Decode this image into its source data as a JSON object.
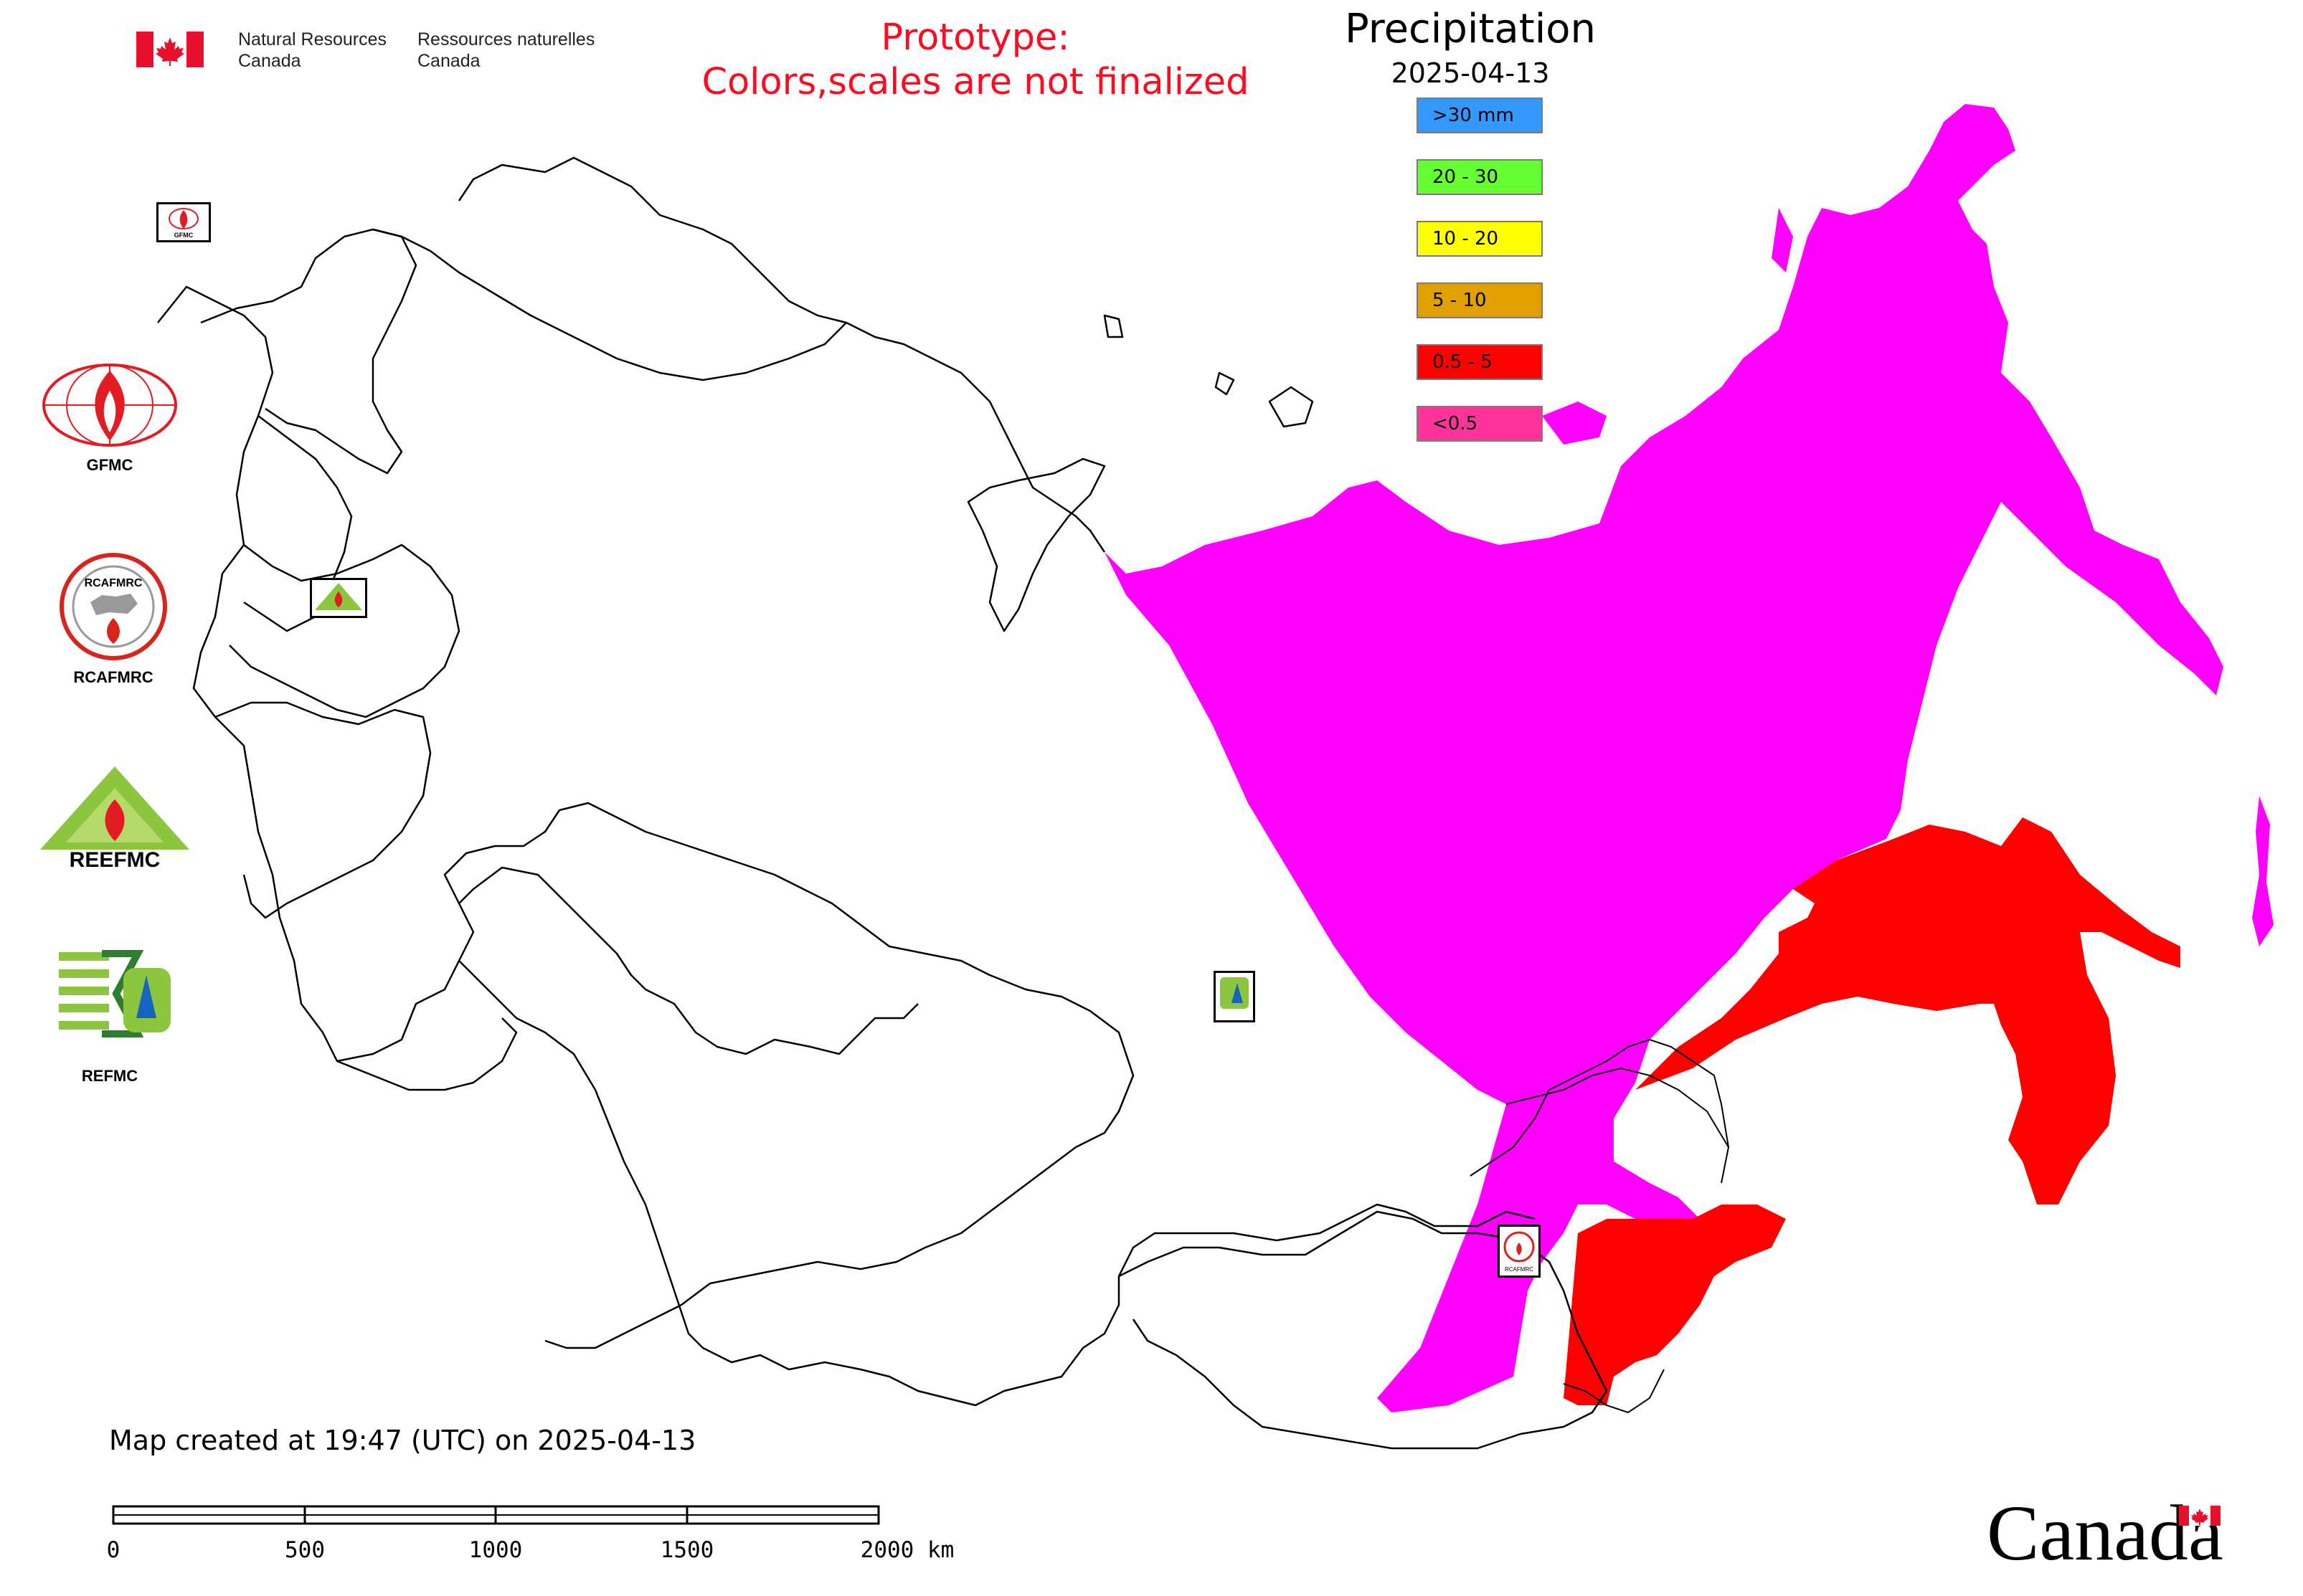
{
  "header": {
    "department_en": [
      "Natural Resources",
      "Canada"
    ],
    "department_fr": [
      "Ressources naturelles",
      "Canada"
    ],
    "prototype_line1": "Prototype:",
    "prototype_line2": "Colors,scales are not finalized"
  },
  "legend": {
    "title": "Precipitation",
    "date": "2025-04-13",
    "items": [
      {
        "label": ">30 mm",
        "color": "#3399ff"
      },
      {
        "label": "20 - 30",
        "color": "#66ff33"
      },
      {
        "label": "10 - 20",
        "color": "#ffff00"
      },
      {
        "label": "5 - 10",
        "color": "#e0a000"
      },
      {
        "label": "0.5 - 5",
        "color": "#ff0000"
      },
      {
        "label": "<0.5",
        "color": "#ff3399"
      }
    ]
  },
  "map_colors": {
    "dominant_fill": "#ff00ff",
    "red_fill": "#ff0000",
    "boundary": "#000000"
  },
  "logos": [
    "GFMC",
    "RCAFMRC",
    "REEFMC",
    "REFMC"
  ],
  "marker_labels": [
    "GFMC",
    "RCAFMRC"
  ],
  "footer": {
    "created": "Map created at 19:47 (UTC) on 2025-04-13",
    "scale_ticks": [
      "0",
      "500",
      "1000",
      "1500",
      "2000 km"
    ],
    "canada_wordmark": "Canada"
  },
  "icons": {
    "gov_flag": "canada-flag-icon",
    "wordmark_flag": "canada-flag-icon"
  }
}
